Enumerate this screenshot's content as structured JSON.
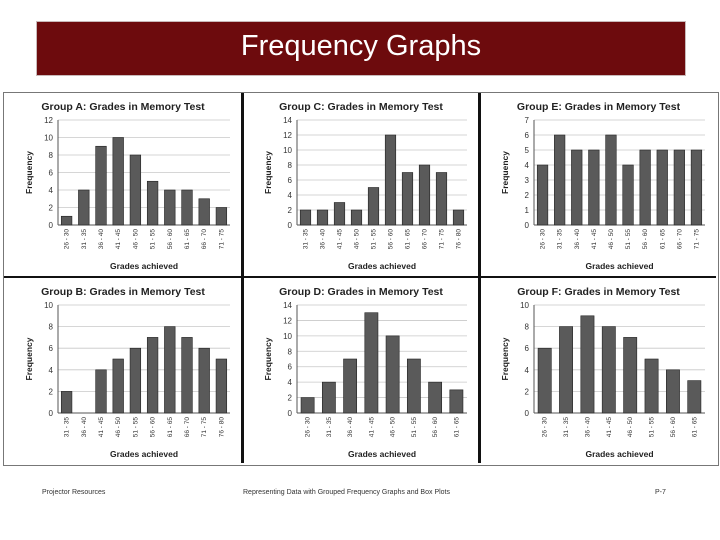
{
  "header": {
    "title": "Frequency Graphs"
  },
  "footer": {
    "left": "Projector Resources",
    "center": "Representing Data with Grouped Frequency Graphs and Box Plots",
    "right": "P-7"
  },
  "colors": {
    "title_bar": "#6d0b0d",
    "bar_fill": "#5a5a5a",
    "bar_stroke": "#222222",
    "grid": "#c8c8c8"
  },
  "chart_data": [
    {
      "type": "bar",
      "title": "Group A: Grades in Memory Test",
      "xlabel": "Grades achieved",
      "ylabel": "Frequency",
      "ylim": [
        0,
        12
      ],
      "yticks": [
        0,
        2,
        4,
        6,
        8,
        10,
        12
      ],
      "categories": [
        "26 - 30",
        "31 - 35",
        "36 - 40",
        "41 - 45",
        "46 - 50",
        "51 - 55",
        "56 - 60",
        "61 - 65",
        "66 - 70",
        "71 - 75"
      ],
      "values": [
        1,
        4,
        9,
        10,
        8,
        5,
        4,
        4,
        3,
        2
      ],
      "grid": true
    },
    {
      "type": "bar",
      "title": "Group C: Grades in Memory Test",
      "xlabel": "Grades achieved",
      "ylabel": "Frequency",
      "ylim": [
        0,
        14
      ],
      "yticks": [
        0,
        2,
        4,
        6,
        8,
        10,
        12,
        14
      ],
      "categories": [
        "31 - 35",
        "36 - 40",
        "41 - 45",
        "46 - 50",
        "51 - 55",
        "56 - 60",
        "61 - 65",
        "66 - 70",
        "71 - 75",
        "76 - 80"
      ],
      "values": [
        2,
        2,
        3,
        2,
        5,
        12,
        7,
        8,
        7,
        2
      ],
      "grid": true
    },
    {
      "type": "bar",
      "title": "Group E: Grades in Memory Test",
      "xlabel": "Grades achieved",
      "ylabel": "Frequency",
      "ylim": [
        0,
        7
      ],
      "yticks": [
        0,
        1,
        2,
        3,
        4,
        5,
        6,
        7
      ],
      "categories": [
        "26 - 30",
        "31 - 35",
        "36 - 40",
        "41 - 45",
        "46 - 50",
        "51 - 55",
        "56 - 60",
        "61 - 65",
        "66 - 70",
        "71 - 75"
      ],
      "values": [
        4,
        6,
        5,
        5,
        6,
        4,
        5,
        5,
        5,
        5
      ],
      "grid": true
    },
    {
      "type": "bar",
      "title": "Group B: Grades in Memory Test",
      "xlabel": "Grades achieved",
      "ylabel": "Frequency",
      "ylim": [
        0,
        10
      ],
      "yticks": [
        0,
        2,
        4,
        6,
        8,
        10
      ],
      "categories": [
        "31 - 35",
        "36 - 40",
        "41 - 45",
        "46 - 50",
        "51 - 55",
        "56 - 60",
        "61 - 65",
        "66 - 70",
        "71 - 75",
        "76 - 80"
      ],
      "values": [
        2,
        0,
        4,
        5,
        6,
        7,
        8,
        7,
        6,
        5
      ],
      "grid": true
    },
    {
      "type": "bar",
      "title": "Group D: Grades in Memory Test",
      "xlabel": "Grades achieved",
      "ylabel": "Frequency",
      "ylim": [
        0,
        14
      ],
      "yticks": [
        0,
        2,
        4,
        6,
        8,
        10,
        12,
        14
      ],
      "categories": [
        "26 - 30",
        "31 - 35",
        "36 - 40",
        "41 - 45",
        "46 - 50",
        "51 - 55",
        "56 - 60",
        "61 - 65"
      ],
      "values": [
        2,
        4,
        7,
        13,
        10,
        7,
        4,
        3
      ],
      "grid": true
    },
    {
      "type": "bar",
      "title": "Group F: Grades in Memory Test",
      "xlabel": "Grades achieved",
      "ylabel": "Frequency",
      "ylim": [
        0,
        10
      ],
      "yticks": [
        0,
        2,
        4,
        6,
        8,
        10
      ],
      "categories": [
        "26 - 30",
        "31 - 35",
        "36 - 40",
        "41 - 45",
        "46 - 50",
        "51 - 55",
        "56 - 60",
        "61 - 65"
      ],
      "values": [
        6,
        8,
        9,
        8,
        7,
        5,
        4,
        3
      ],
      "grid": true
    }
  ]
}
